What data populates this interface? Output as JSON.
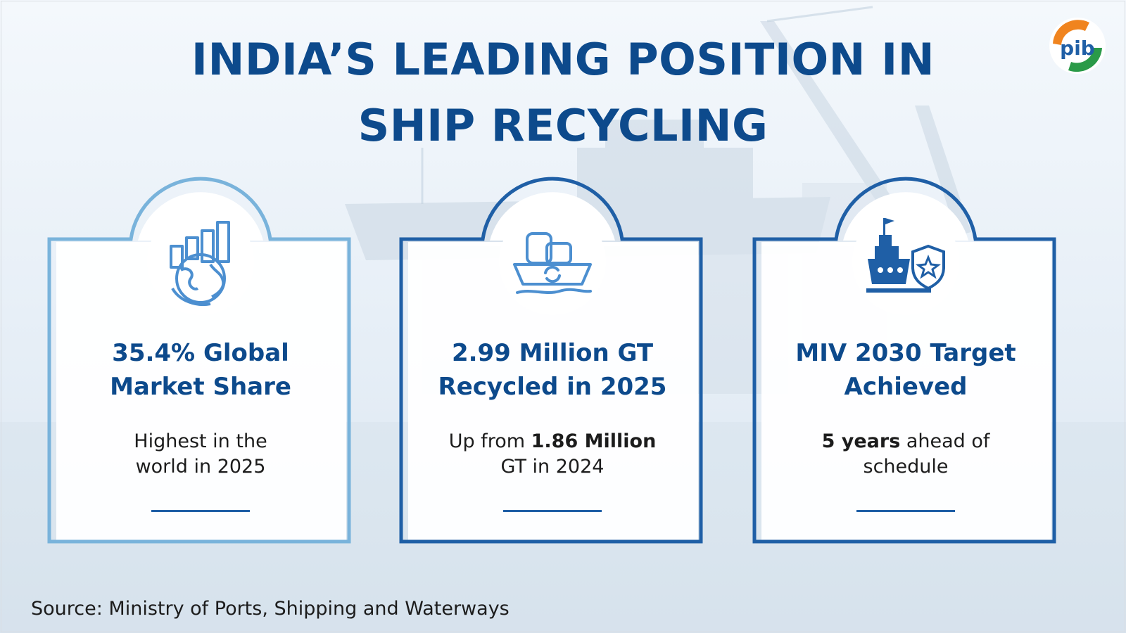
{
  "title": {
    "line1": "INDIA’S LEADING POSITION IN",
    "line2": "SHIP RECYCLING"
  },
  "logo": {
    "icon": "pib-logo",
    "text": "pib"
  },
  "cards": [
    {
      "icon": "globe-chart-icon",
      "heading_line1": "35.4% Global",
      "heading_line2": "Market Share",
      "desc_line1": "Highest in the",
      "desc_line2": "world in 2025"
    },
    {
      "icon": "recycling-ship-icon",
      "heading_line1": "2.99 Million GT",
      "heading_line2": "Recycled in 2025",
      "desc_line1_pre": "Up from ",
      "desc_line1_bold": "1.86 Million",
      "desc_line2": "GT in 2024"
    },
    {
      "icon": "ship-award-icon",
      "heading_line1": "MIV 2030 Target",
      "heading_line2": "Achieved",
      "desc_line1_bold": "5 years",
      "desc_line1_post": " ahead of",
      "desc_line2": "schedule"
    }
  ],
  "source": "Source: Ministry of Ports, Shipping and Waterways",
  "colors": {
    "title": "#0d4a8c",
    "frame_light": "#79b3db",
    "frame_dark": "#1f5fa6",
    "text": "#1c1c1c",
    "orange": "#f0841f",
    "green": "#2a9a48"
  }
}
